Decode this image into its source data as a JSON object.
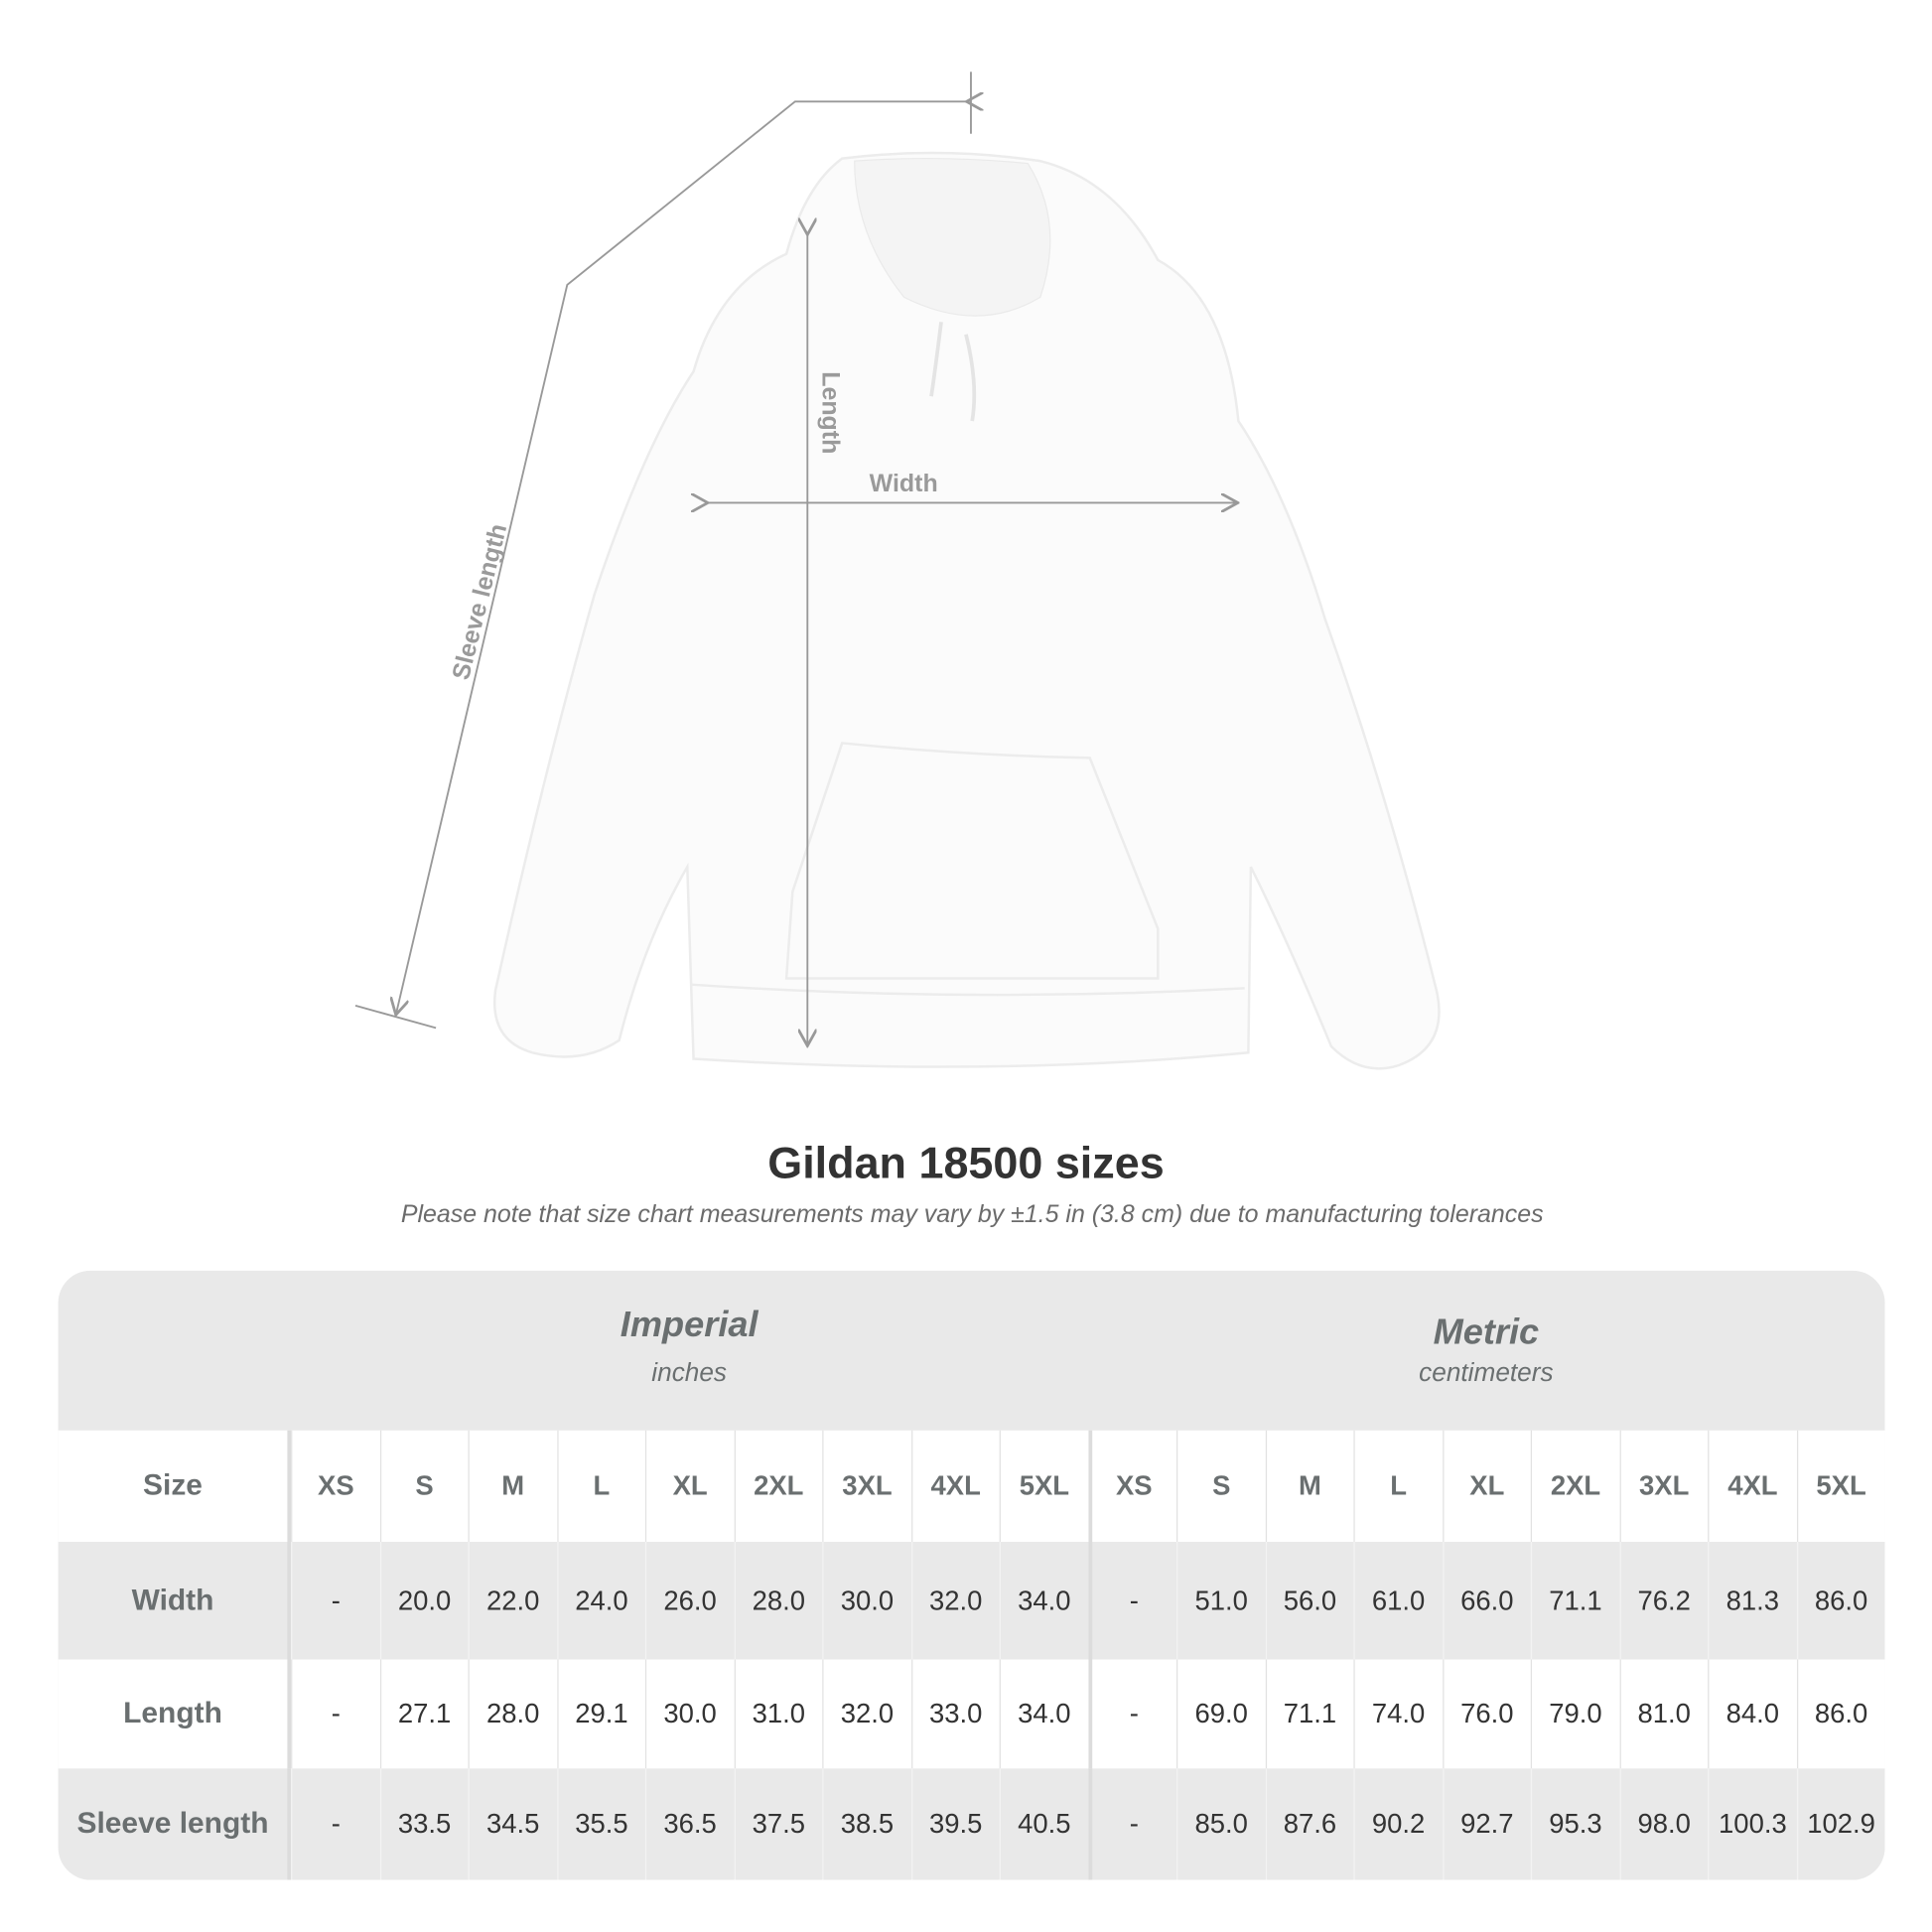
{
  "diagram": {
    "labels": {
      "sleeve": "Sleeve length",
      "length": "Length",
      "width": "Width"
    }
  },
  "title": "Gildan 18500 sizes",
  "subtitle": "Please note that size chart measurements may vary by ±1.5 in (3.8 cm) due to manufacturing tolerances",
  "table": {
    "imperial": {
      "name": "Imperial",
      "unit": "inches"
    },
    "metric": {
      "name": "Metric",
      "unit": "centimeters"
    },
    "size_label": "Size",
    "sizes": [
      "XS",
      "S",
      "M",
      "L",
      "XL",
      "2XL",
      "3XL",
      "4XL",
      "5XL",
      "XS",
      "S",
      "M",
      "L",
      "XL",
      "2XL",
      "3XL",
      "4XL",
      "5XL"
    ],
    "rows": [
      {
        "label": "Width",
        "values": [
          "-",
          "20.0",
          "22.0",
          "24.0",
          "26.0",
          "28.0",
          "30.0",
          "32.0",
          "34.0",
          "-",
          "51.0",
          "56.0",
          "61.0",
          "66.0",
          "71.1",
          "76.2",
          "81.3",
          "86.0"
        ]
      },
      {
        "label": "Length",
        "values": [
          "-",
          "27.1",
          "28.0",
          "29.1",
          "30.0",
          "31.0",
          "32.0",
          "33.0",
          "34.0",
          "-",
          "69.0",
          "71.1",
          "74.0",
          "76.0",
          "79.0",
          "81.0",
          "84.0",
          "86.0"
        ]
      },
      {
        "label": "Sleeve length",
        "values": [
          "-",
          "33.5",
          "34.5",
          "35.5",
          "36.5",
          "37.5",
          "38.5",
          "39.5",
          "40.5",
          "-",
          "85.0",
          "87.6",
          "90.2",
          "92.7",
          "95.3",
          "98.0",
          "100.3",
          "102.9"
        ]
      }
    ]
  },
  "colors": {
    "header_bg": "#e9e9e9",
    "label_text": "#6a6f70",
    "measure_line": "#9a9a9a"
  }
}
